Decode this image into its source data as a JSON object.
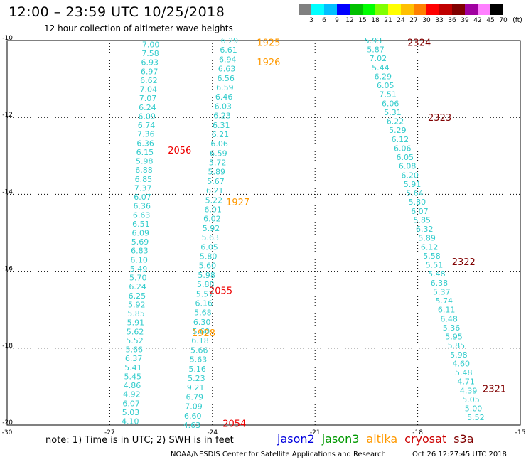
{
  "title": "12:00 – 23:59 UTC 10/25/2018",
  "subtitle": "12 hour collection of altimeter wave heights",
  "colorbar": {
    "unit": "(ft)",
    "bins": [
      {
        "label": "3",
        "color": "#808080"
      },
      {
        "label": "6",
        "color": "#00ffff"
      },
      {
        "label": "9",
        "color": "#00bfff"
      },
      {
        "label": "12",
        "color": "#0000ff"
      },
      {
        "label": "15",
        "color": "#00c000"
      },
      {
        "label": "18",
        "color": "#00ff00"
      },
      {
        "label": "21",
        "color": "#80ff00"
      },
      {
        "label": "24",
        "color": "#ffff00"
      },
      {
        "label": "27",
        "color": "#ffc000"
      },
      {
        "label": "30",
        "color": "#ff8000"
      },
      {
        "label": "33",
        "color": "#ff0000"
      },
      {
        "label": "36",
        "color": "#c00000"
      },
      {
        "label": "39",
        "color": "#800000"
      },
      {
        "label": "42",
        "color": "#a000a0"
      },
      {
        "label": "45",
        "color": "#ff80ff"
      },
      {
        "label": "70",
        "color": "#000000"
      }
    ]
  },
  "axes": {
    "lon_ticks": [
      "-30",
      "-27",
      "-24",
      "-21",
      "-18",
      "-15"
    ],
    "lat_ticks": [
      "-10",
      "-12",
      "-14",
      "-16",
      "-18",
      "-20"
    ]
  },
  "chart_data": {
    "type": "scatter",
    "xlim": [
      -30,
      -15
    ],
    "ylim": [
      -20,
      -10
    ],
    "grid": true,
    "tracks": [
      {
        "name": "track-a",
        "color": "#33cccc",
        "lon_start": -25.8,
        "lon_end": -26.4,
        "lat_start": -10.1,
        "lat_end": -19.9,
        "values": [
          "7.00",
          "7.58",
          "6.93",
          "6.97",
          "6.62",
          "7.04",
          "7.07",
          "6.24",
          "6.09",
          "6.74",
          "7.36",
          "6.36",
          "6.15",
          "5.98",
          "6.88",
          "6.85",
          "7.37",
          "6.07",
          "6.36",
          "6.63",
          "6.51",
          "6.09",
          "5.69",
          "6.83",
          "6.10",
          "5.49",
          "5.70",
          "6.24",
          "6.25",
          "5.92",
          "5.85",
          "5.91",
          "5.62",
          "5.52",
          "5.66",
          "6.37",
          "5.41",
          "5.45",
          "4.86",
          "4.92",
          "6.07",
          "5.03",
          "4.10"
        ]
      },
      {
        "name": "track-b",
        "color": "#33cccc",
        "lon_start": -23.5,
        "lon_end": -24.6,
        "lat_start": -10.0,
        "lat_end": -20.0,
        "values": [
          "6.29",
          "6.61",
          "6.94",
          "6.63",
          "6.56",
          "6.59",
          "6.46",
          "6.03",
          "6.23",
          "6.31",
          "6.21",
          "6.06",
          "6.59",
          "5.72",
          "5.89",
          "5.67",
          "6.21",
          "5.22",
          "6.01",
          "6.02",
          "5.92",
          "5.63",
          "6.05",
          "5.80",
          "5.60",
          "5.98",
          "5.88",
          "5.57",
          "6.16",
          "5.68",
          "6.30",
          "5.60",
          "6.18",
          "5.66",
          "5.63",
          "5.16",
          "5.23",
          "9.21",
          "6.79",
          "7.09",
          "6.60",
          "4.63"
        ]
      },
      {
        "name": "track-c",
        "color": "#33cccc",
        "lon_start": -19.3,
        "lon_end": -16.3,
        "lat_start": -10.0,
        "lat_end": -19.8,
        "values": [
          "5.93",
          "5.87",
          "7.02",
          "5.44",
          "6.29",
          "6.05",
          "7.51",
          "6.06",
          "5.31",
          "6.22",
          "5.29",
          "6.12",
          "6.06",
          "6.05",
          "6.08",
          "6.20",
          "5.91",
          "5.64",
          "5.80",
          "6.07",
          "5.85",
          "6.32",
          "5.89",
          "6.12",
          "5.58",
          "5.51",
          "5.48",
          "6.38",
          "5.37",
          "5.74",
          "6.11",
          "6.48",
          "5.36",
          "5.95",
          "5.85",
          "5.98",
          "4.60",
          "5.48",
          "4.71",
          "4.39",
          "5.05",
          "5.00",
          "5.52"
        ]
      }
    ],
    "time_labels": [
      {
        "text": "1925",
        "lon": -22.7,
        "lat": -10.05,
        "color": "#ff9900"
      },
      {
        "text": "1926",
        "lon": -22.7,
        "lat": -10.55,
        "color": "#ff9900"
      },
      {
        "text": "2324",
        "lon": -18.3,
        "lat": -10.05,
        "color": "#800000"
      },
      {
        "text": "2323",
        "lon": -17.7,
        "lat": -12.0,
        "color": "#800000"
      },
      {
        "text": "2056",
        "lon": -25.3,
        "lat": -12.85,
        "color": "#ee0000"
      },
      {
        "text": "1927",
        "lon": -23.6,
        "lat": -14.2,
        "color": "#ff9900"
      },
      {
        "text": "2322",
        "lon": -17.0,
        "lat": -15.75,
        "color": "#800000"
      },
      {
        "text": "2055",
        "lon": -24.1,
        "lat": -16.5,
        "color": "#ee0000"
      },
      {
        "text": "1928",
        "lon": -24.6,
        "lat": -17.6,
        "color": "#ff9900"
      },
      {
        "text": "2321",
        "lon": -16.1,
        "lat": -19.05,
        "color": "#800000"
      },
      {
        "text": "2054",
        "lon": -23.7,
        "lat": -19.95,
        "color": "#ee0000"
      }
    ]
  },
  "footer": {
    "note": "note:  1) Time is in UTC;  2) SWH is in feet",
    "legend": [
      {
        "label": "jason2",
        "color": "#0000dd"
      },
      {
        "label": "jason3",
        "color": "#009900"
      },
      {
        "label": "altika",
        "color": "#ff9900"
      },
      {
        "label": "cryosat",
        "color": "#cc0000"
      },
      {
        "label": "s3a",
        "color": "#800000"
      }
    ],
    "credit": "NOAA/NESDIS Center for Satellite Applications and Research",
    "timestamp": "Oct 26 12:27:45 UTC 2018"
  }
}
